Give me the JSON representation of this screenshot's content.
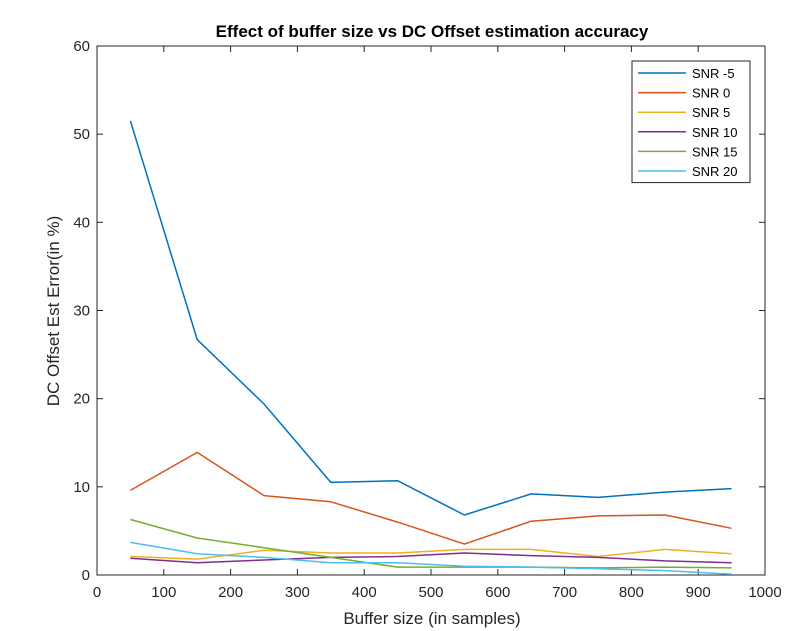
{
  "chart_data": {
    "type": "line",
    "title": "Effect of buffer size vs DC Offset estimation accuracy",
    "xlabel": "Buffer size (in samples)",
    "ylabel": "DC Offset Est Error(in %)",
    "xlim": [
      0,
      1000
    ],
    "ylim": [
      0,
      60
    ],
    "xticks": [
      0,
      100,
      200,
      300,
      400,
      500,
      600,
      700,
      800,
      900,
      1000
    ],
    "yticks": [
      0,
      10,
      20,
      30,
      40,
      50,
      60
    ],
    "x": [
      50,
      150,
      250,
      350,
      450,
      550,
      650,
      750,
      850,
      950
    ],
    "grid": false,
    "legend_position": "top-right",
    "series": [
      {
        "name": "SNR -5",
        "color": "#0072BD",
        "values": [
          51.5,
          26.7,
          19.4,
          10.5,
          10.7,
          6.8,
          9.2,
          8.8,
          9.4,
          9.8
        ]
      },
      {
        "name": "SNR 0",
        "color": "#D95319",
        "values": [
          9.6,
          13.9,
          9.0,
          8.3,
          6.0,
          3.5,
          6.1,
          6.7,
          6.8,
          5.3
        ]
      },
      {
        "name": "SNR 5",
        "color": "#EDB120",
        "values": [
          2.1,
          1.8,
          2.8,
          2.5,
          2.5,
          2.9,
          2.9,
          2.1,
          2.9,
          2.4
        ]
      },
      {
        "name": "SNR 10",
        "color": "#7E2F8E",
        "values": [
          1.9,
          1.4,
          1.7,
          2.0,
          2.1,
          2.5,
          2.2,
          2.0,
          1.6,
          1.4
        ]
      },
      {
        "name": "SNR 15",
        "color": "#77AC30",
        "values": [
          6.3,
          4.2,
          3.1,
          2.0,
          0.9,
          0.9,
          0.9,
          0.8,
          0.9,
          0.8
        ]
      },
      {
        "name": "SNR 20",
        "color": "#4DBEEE",
        "values": [
          3.7,
          2.4,
          2.0,
          1.4,
          1.4,
          1.0,
          0.9,
          0.7,
          0.5,
          0.1
        ]
      }
    ]
  }
}
